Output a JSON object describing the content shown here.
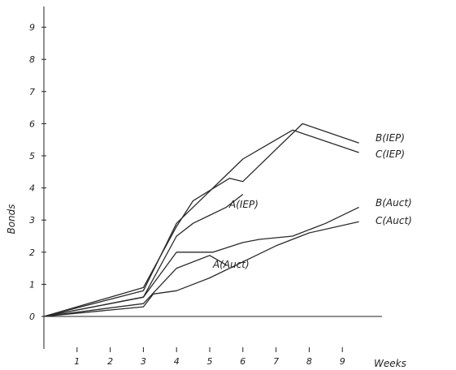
{
  "chart_data": {
    "type": "line",
    "xlabel": "Weeks",
    "ylabel": "Bonds",
    "xlim": [
      0,
      10
    ],
    "ylim": [
      0,
      9
    ],
    "x_ticks": [
      "1",
      "2",
      "3",
      "4",
      "5",
      "6",
      "7",
      "8",
      "9"
    ],
    "y_ticks": [
      "0",
      "1",
      "2",
      "3",
      "4",
      "5",
      "6",
      "7",
      "8",
      "9"
    ],
    "grid": false,
    "legend": "inline labels",
    "series": [
      {
        "name": "B (IEP)",
        "label_text": "B(IEP)",
        "x": [
          0,
          3,
          4,
          4.5,
          5.6,
          6,
          7.8,
          9.5
        ],
        "y": [
          0,
          0.9,
          2.8,
          3.6,
          4.3,
          4.2,
          6.0,
          5.4
        ]
      },
      {
        "name": "C (IEP)",
        "label_text": "C(IEP)",
        "x": [
          0,
          3,
          4,
          5,
          6,
          6.5,
          7.5,
          9.5
        ],
        "y": [
          0,
          0.8,
          2.9,
          3.9,
          4.9,
          5.2,
          5.8,
          5.1
        ]
      },
      {
        "name": "A (IEP)",
        "label_text": "A(IEP)",
        "x": [
          0,
          3,
          4,
          4.5,
          5.5,
          6
        ],
        "y": [
          0,
          0.6,
          2.5,
          2.9,
          3.4,
          3.8
        ]
      },
      {
        "name": "B (Auct)",
        "label_text": "B(Auct)",
        "x": [
          0,
          3,
          4,
          5.1,
          6,
          6.5,
          7.5,
          8.5,
          9.5
        ],
        "y": [
          0,
          0.6,
          2.0,
          2.0,
          2.3,
          2.4,
          2.5,
          2.9,
          3.4
        ]
      },
      {
        "name": "C (Auct)",
        "label_text": "C(Auct)",
        "x": [
          0,
          3,
          3.3,
          4,
          5,
          6,
          7,
          8,
          9.5
        ],
        "y": [
          0,
          0.3,
          0.7,
          0.8,
          1.2,
          1.7,
          2.2,
          2.6,
          2.95
        ]
      },
      {
        "name": "A (Auct)",
        "label_text": "A(Auct)",
        "x": [
          0,
          3,
          4,
          5,
          5.5
        ],
        "y": [
          0,
          0.4,
          1.5,
          1.9,
          1.6
        ]
      }
    ]
  }
}
